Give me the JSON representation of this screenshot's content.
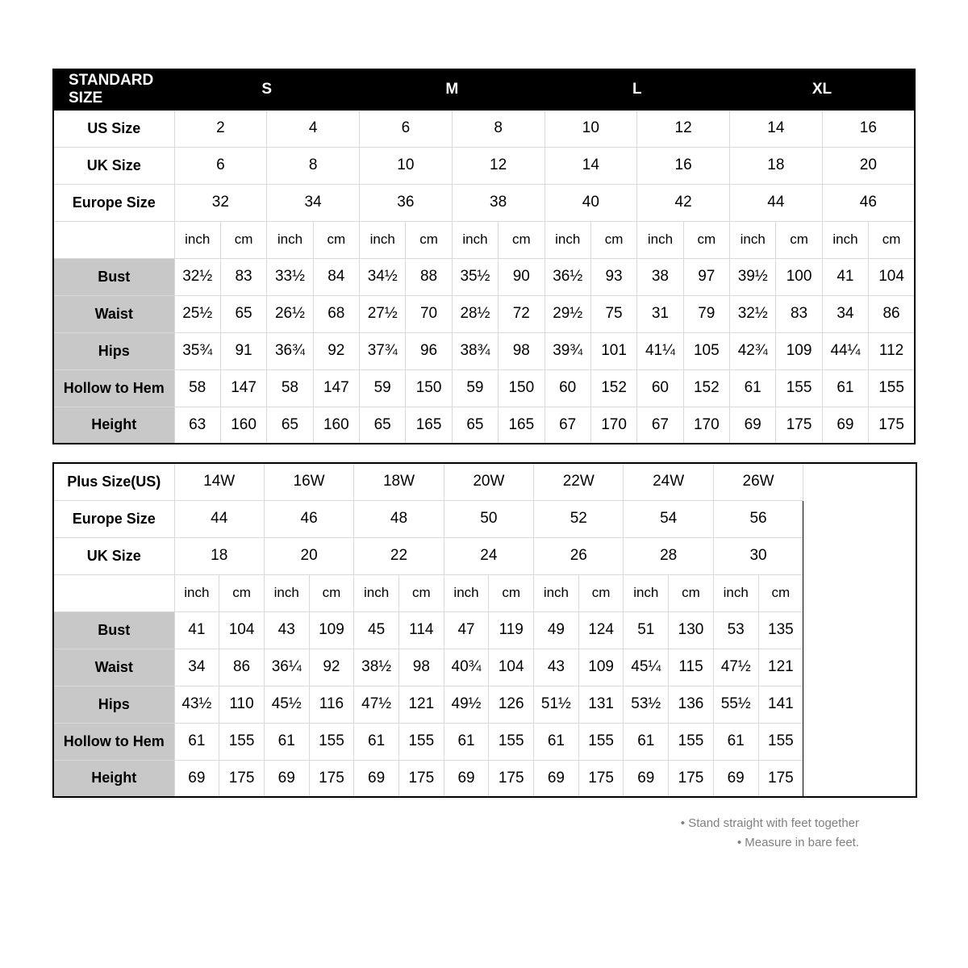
{
  "standard": {
    "header": {
      "title": "STANDARD SIZE",
      "cols": [
        "S",
        "M",
        "L",
        "XL"
      ]
    },
    "size_rows": [
      {
        "label": "US Size",
        "vals": [
          "2",
          "4",
          "6",
          "8",
          "10",
          "12",
          "14",
          "16"
        ]
      },
      {
        "label": "UK Size",
        "vals": [
          "6",
          "8",
          "10",
          "12",
          "14",
          "16",
          "18",
          "20"
        ]
      },
      {
        "label": "Europe Size",
        "vals": [
          "32",
          "34",
          "36",
          "38",
          "40",
          "42",
          "44",
          "46"
        ]
      }
    ],
    "unit_pair": [
      "inch",
      "cm"
    ],
    "measure_rows": [
      {
        "label": "Bust",
        "vals": [
          "32½",
          "83",
          "33½",
          "84",
          "34½",
          "88",
          "35½",
          "90",
          "36½",
          "93",
          "38",
          "97",
          "39½",
          "100",
          "41",
          "104"
        ]
      },
      {
        "label": "Waist",
        "vals": [
          "25½",
          "65",
          "26½",
          "68",
          "27½",
          "70",
          "28½",
          "72",
          "29½",
          "75",
          "31",
          "79",
          "32½",
          "83",
          "34",
          "86"
        ]
      },
      {
        "label": "Hips",
        "vals": [
          "35¾",
          "91",
          "36¾",
          "92",
          "37¾",
          "96",
          "38¾",
          "98",
          "39¾",
          "101",
          "41¼",
          "105",
          "42¾",
          "109",
          "44¼",
          "112"
        ]
      },
      {
        "label": "Hollow to Hem",
        "vals": [
          "58",
          "147",
          "58",
          "147",
          "59",
          "150",
          "59",
          "150",
          "60",
          "152",
          "60",
          "152",
          "61",
          "155",
          "61",
          "155"
        ]
      },
      {
        "label": "Height",
        "vals": [
          "63",
          "160",
          "65",
          "160",
          "65",
          "165",
          "65",
          "165",
          "67",
          "170",
          "67",
          "170",
          "69",
          "175",
          "69",
          "175"
        ]
      }
    ]
  },
  "plus": {
    "size_rows": [
      {
        "label": "Plus Size(US)",
        "vals": [
          "14W",
          "16W",
          "18W",
          "20W",
          "22W",
          "24W",
          "26W"
        ]
      },
      {
        "label": "Europe Size",
        "vals": [
          "44",
          "46",
          "48",
          "50",
          "52",
          "54",
          "56"
        ]
      },
      {
        "label": "UK Size",
        "vals": [
          "18",
          "20",
          "22",
          "24",
          "26",
          "28",
          "30"
        ]
      }
    ],
    "unit_pair": [
      "inch",
      "cm"
    ],
    "measure_rows": [
      {
        "label": "Bust",
        "vals": [
          "41",
          "104",
          "43",
          "109",
          "45",
          "114",
          "47",
          "119",
          "49",
          "124",
          "51",
          "130",
          "53",
          "135"
        ]
      },
      {
        "label": "Waist",
        "vals": [
          "34",
          "86",
          "36¼",
          "92",
          "38½",
          "98",
          "40¾",
          "104",
          "43",
          "109",
          "45¼",
          "115",
          "47½",
          "121"
        ]
      },
      {
        "label": "Hips",
        "vals": [
          "43½",
          "110",
          "45½",
          "116",
          "47½",
          "121",
          "49½",
          "126",
          "51½",
          "131",
          "53½",
          "136",
          "55½",
          "141"
        ]
      },
      {
        "label": "Hollow to Hem",
        "vals": [
          "61",
          "155",
          "61",
          "155",
          "61",
          "155",
          "61",
          "155",
          "61",
          "155",
          "61",
          "155",
          "61",
          "155"
        ]
      },
      {
        "label": "Height",
        "vals": [
          "69",
          "175",
          "69",
          "175",
          "69",
          "175",
          "69",
          "175",
          "69",
          "175",
          "69",
          "175",
          "69",
          "175"
        ]
      }
    ]
  },
  "notes": [
    "Stand straight with feet together",
    "Measure in bare feet."
  ],
  "style": {
    "bg": "#ffffff",
    "header_bg": "#000000",
    "header_fg": "#ffffff",
    "border": "#d9d9d9",
    "outer_border": "#000000",
    "shaded": "#c8c8c8",
    "note_color": "#7f7f7f",
    "cell_fontsize": 19,
    "label_fontsize": 18
  }
}
